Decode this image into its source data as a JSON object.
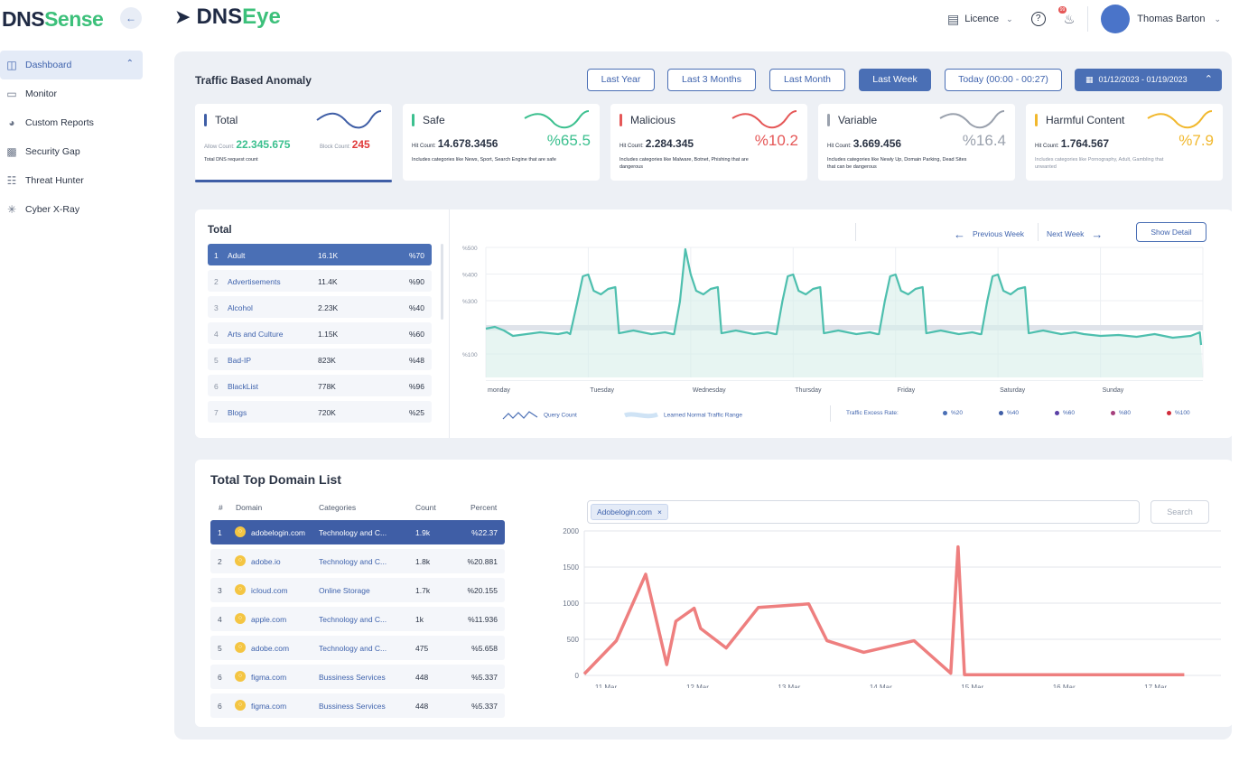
{
  "sidebar": {
    "brand_dns": "DNS",
    "brand_sense": "Sense",
    "items": [
      {
        "label": "Dashboard",
        "icon": "dashboard-icon"
      },
      {
        "label": "Monitor",
        "icon": "monitor-icon"
      },
      {
        "label": "Custom Reports",
        "icon": "pie-chart-icon"
      },
      {
        "label": "Security Gap",
        "icon": "shield-monitor-icon"
      },
      {
        "label": "Threat Hunter",
        "icon": "network-icon"
      },
      {
        "label": "Cyber X-Ray",
        "icon": "radar-icon"
      }
    ]
  },
  "header": {
    "logo_dns": "DNS",
    "logo_eye": "Eye",
    "licence": "Licence",
    "notification_count": "99",
    "user_name": "Thomas Barton"
  },
  "anomaly": {
    "title": "Traffic Based Anomaly",
    "ranges": [
      "Last Year",
      "Last 3 Months",
      "Last Month",
      "Last Week",
      "Today (00:00 - 00:27)"
    ],
    "active_range": "Last Week",
    "date_range": "01/12/2023 - 01/19/2023"
  },
  "kpis": [
    {
      "name": "Total",
      "color": "#3f5ea6",
      "allow_label": "Allow Count:",
      "allow_value": "22.345.675",
      "block_label": "Block Count:",
      "block_value": "245",
      "desc": "Total DNS request count"
    },
    {
      "name": "Safe",
      "color": "#3cc08f",
      "hit_label": "Hit Count:",
      "hit_value": "14.678.3456",
      "percent": "%65.5",
      "desc": "Includes categories like News, Sport, Search Engine that are safe"
    },
    {
      "name": "Malicious",
      "color": "#e55757",
      "hit_label": "Hit Count:",
      "hit_value": "2.284.345",
      "percent": "%10.2",
      "desc": "Includes categories like Malware, Botnet, Phishing that are dangerous"
    },
    {
      "name": "Variable",
      "color": "#9aa1ad",
      "hit_label": "Hit Count:",
      "hit_value": "3.669.456",
      "percent": "%16.4",
      "desc": "Includes categories like Newly Up, Domain Parking, Dead Sites that can be dangerous"
    },
    {
      "name": "Harmful Content",
      "color": "#f1b82d",
      "hit_label": "Hit Count:",
      "hit_value": "1.764.567",
      "percent": "%7.9",
      "desc": "Includes categories like Pornography, Adult, Gambling that unwanted"
    }
  ],
  "categories": {
    "title": "Total",
    "rows": [
      {
        "idx": "1",
        "name": "Adult",
        "value": "16.1K",
        "pct": "%70"
      },
      {
        "idx": "2",
        "name": "Advertisements",
        "value": "11.4K",
        "pct": "%90"
      },
      {
        "idx": "3",
        "name": "Alcohol",
        "value": "2.23K",
        "pct": "%40"
      },
      {
        "idx": "4",
        "name": "Arts and Culture",
        "value": "1.15K",
        "pct": "%60"
      },
      {
        "idx": "5",
        "name": "Bad-IP",
        "value": "823K",
        "pct": "%48"
      },
      {
        "idx": "6",
        "name": "BlackList",
        "value": "778K",
        "pct": "%96"
      },
      {
        "idx": "7",
        "name": "Blogs",
        "value": "720K",
        "pct": "%25"
      }
    ]
  },
  "weekly_chart": {
    "prev_label": "Previous Week",
    "next_label": "Next Week",
    "detail_label": "Show Detail",
    "y_ticks": [
      "%500",
      "%400",
      "%300",
      "%100"
    ],
    "days": [
      "monday",
      "Tuesday",
      "Wednesday",
      "Thursday",
      "Friday",
      "Saturday",
      "Sunday"
    ],
    "legend_query": "Query Count",
    "legend_range": "Learned Normal Traffic Range",
    "legend_excess": "Traffic Excess Rate:",
    "excess_levels": [
      {
        "label": "%20",
        "color": "#4a6fb5"
      },
      {
        "label": "%40",
        "color": "#3f5ea6"
      },
      {
        "label": "%60",
        "color": "#5a3fa6"
      },
      {
        "label": "%80",
        "color": "#a63f7d"
      },
      {
        "label": "%100",
        "color": "#d02b3a"
      }
    ]
  },
  "domains": {
    "title": "Total Top Domain List",
    "headers": [
      "#",
      "Domain",
      "Categories",
      "Count",
      "Percent"
    ],
    "rows": [
      {
        "idx": "1",
        "domain": "adobelogin.com",
        "category": "Technology and C...",
        "count": "1.9k",
        "pct": "%22.37"
      },
      {
        "idx": "2",
        "domain": "adobe.io",
        "category": "Technology and C...",
        "count": "1.8k",
        "pct": "%20.881"
      },
      {
        "idx": "3",
        "domain": "icloud.com",
        "category": "Online Storage",
        "count": "1.7k",
        "pct": "%20.155"
      },
      {
        "idx": "4",
        "domain": "apple.com",
        "category": "Technology and C...",
        "count": "1k",
        "pct": "%11.936"
      },
      {
        "idx": "5",
        "domain": "adobe.com",
        "category": "Technology and C...",
        "count": "475",
        "pct": "%5.658"
      },
      {
        "idx": "6",
        "domain": "figma.com",
        "category": "Bussiness Services",
        "count": "448",
        "pct": "%5.337"
      },
      {
        "idx": "6",
        "domain": "figma.com",
        "category": "Bussiness Services",
        "count": "448",
        "pct": "%5.337"
      }
    ],
    "search_chip": "Adobelogin.com",
    "search_button": "Search"
  },
  "chart_data": {
    "type": "line",
    "x": [
      "11 Mar",
      "12 Mar",
      "13 Mar",
      "14 Mar",
      "15 Mar",
      "16 Mar",
      "17 Mar"
    ],
    "ylim": [
      0,
      2000
    ],
    "y_ticks": [
      "2000",
      "1500",
      "1000",
      "500",
      "0"
    ],
    "series": [
      {
        "color": "#ee7f7f",
        "points": [
          [
            0.0,
            20
          ],
          [
            0.35,
            480
          ],
          [
            0.67,
            1400
          ],
          [
            0.9,
            150
          ],
          [
            1.0,
            750
          ],
          [
            1.2,
            930
          ],
          [
            1.27,
            650
          ],
          [
            1.55,
            380
          ],
          [
            1.9,
            940
          ],
          [
            2.45,
            990
          ],
          [
            2.65,
            480
          ],
          [
            3.05,
            320
          ],
          [
            3.6,
            480
          ],
          [
            4.0,
            30
          ],
          [
            4.08,
            1780
          ],
          [
            4.15,
            10
          ],
          [
            5.0,
            10
          ],
          [
            6.0,
            10
          ],
          [
            6.55,
            10
          ]
        ]
      }
    ]
  }
}
